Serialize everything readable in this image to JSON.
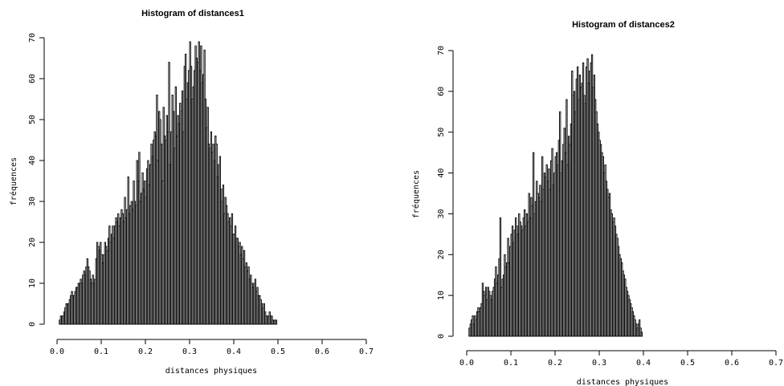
{
  "chart_data": [
    {
      "type": "bar",
      "title": "Histogram of distances1",
      "xlabel": "distances physiques",
      "ylabel": "fréquences",
      "xlim": [
        0,
        0.7
      ],
      "ylim": [
        0,
        70
      ],
      "x_ticks": [
        "0.0",
        "0.1",
        "0.2",
        "0.3",
        "0.4",
        "0.5",
        "0.6",
        "0.7"
      ],
      "y_ticks": [
        "0",
        "10",
        "20",
        "30",
        "40",
        "50",
        "60",
        "70"
      ],
      "bin_start": 0.005,
      "bin_width": 0.0025,
      "values": [
        1,
        2,
        2,
        2,
        3,
        4,
        5,
        5,
        5,
        6,
        7,
        8,
        7,
        7,
        8,
        9,
        9,
        10,
        10,
        11,
        10,
        12,
        13,
        12,
        14,
        16,
        14,
        13,
        11,
        10,
        12,
        10,
        11,
        16,
        20,
        19,
        18,
        20,
        17,
        15,
        17,
        20,
        19,
        18,
        21,
        24,
        20,
        22,
        24,
        21,
        24,
        26,
        25,
        27,
        24,
        26,
        28,
        27,
        25,
        31,
        26,
        28,
        36,
        27,
        29,
        30,
        28,
        35,
        30,
        29,
        40,
        35,
        42,
        30,
        32,
        37,
        33,
        35,
        31,
        38,
        40,
        34,
        39,
        44,
        41,
        45,
        47,
        46,
        56,
        40,
        52,
        50,
        44,
        35,
        53,
        46,
        45,
        51,
        47,
        64,
        39,
        47,
        56,
        52,
        43,
        58,
        46,
        51,
        49,
        54,
        52,
        57,
        47,
        63,
        66,
        55,
        59,
        62,
        69,
        63,
        55,
        58,
        62,
        68,
        65,
        64,
        69,
        62,
        68,
        59,
        61,
        67,
        55,
        48,
        53,
        44,
        43,
        47,
        42,
        44,
        40,
        46,
        44,
        36,
        39,
        41,
        33,
        30,
        34,
        27,
        31,
        29,
        27,
        25,
        26,
        24,
        27,
        22,
        22,
        24,
        21,
        21,
        19,
        20,
        17,
        19,
        16,
        18,
        14,
        15,
        13,
        14,
        11,
        12,
        10,
        9,
        10,
        11,
        8,
        9,
        7,
        7,
        6,
        5,
        4,
        5,
        3,
        2,
        2,
        2,
        3,
        2,
        2,
        1,
        1,
        1,
        1
      ]
    },
    {
      "type": "bar",
      "title": "Histogram of distances2",
      "xlabel": "distances physiques",
      "ylabel": "fréquences",
      "xlim": [
        0,
        0.7
      ],
      "ylim": [
        0,
        70
      ],
      "x_ticks": [
        "0.0",
        "0.1",
        "0.2",
        "0.3",
        "0.4",
        "0.5",
        "0.6",
        "0.7"
      ],
      "y_ticks": [
        "0",
        "10",
        "20",
        "30",
        "40",
        "50",
        "60",
        "70"
      ],
      "bin_start": 0.005,
      "bin_width": 0.0025,
      "values": [
        2,
        3,
        4,
        5,
        3,
        5,
        4,
        6,
        7,
        6,
        7,
        8,
        13,
        11,
        10,
        12,
        9,
        12,
        11,
        10,
        9,
        11,
        12,
        14,
        17,
        13,
        15,
        19,
        29,
        12,
        14,
        15,
        20,
        17,
        18,
        24,
        18,
        22,
        25,
        27,
        23,
        26,
        29,
        27,
        25,
        30,
        28,
        27,
        26,
        29,
        31,
        27,
        30,
        28,
        35,
        29,
        34,
        32,
        45,
        30,
        33,
        38,
        35,
        34,
        37,
        33,
        44,
        36,
        40,
        39,
        42,
        38,
        41,
        36,
        43,
        46,
        37,
        40,
        44,
        45,
        42,
        48,
        55,
        40,
        43,
        47,
        51,
        45,
        58,
        42,
        49,
        47,
        52,
        65,
        59,
        60,
        55,
        63,
        66,
        58,
        64,
        61,
        62,
        67,
        59,
        57,
        66,
        68,
        62,
        65,
        67,
        69,
        61,
        64,
        58,
        55,
        52,
        50,
        48,
        47,
        45,
        44,
        40,
        42,
        38,
        36,
        34,
        35,
        31,
        30,
        28,
        29,
        27,
        25,
        24,
        22,
        20,
        19,
        18,
        16,
        15,
        14,
        12,
        11,
        10,
        9,
        8,
        7,
        6,
        5,
        4,
        3,
        2,
        3,
        4,
        2,
        1
      ]
    }
  ]
}
